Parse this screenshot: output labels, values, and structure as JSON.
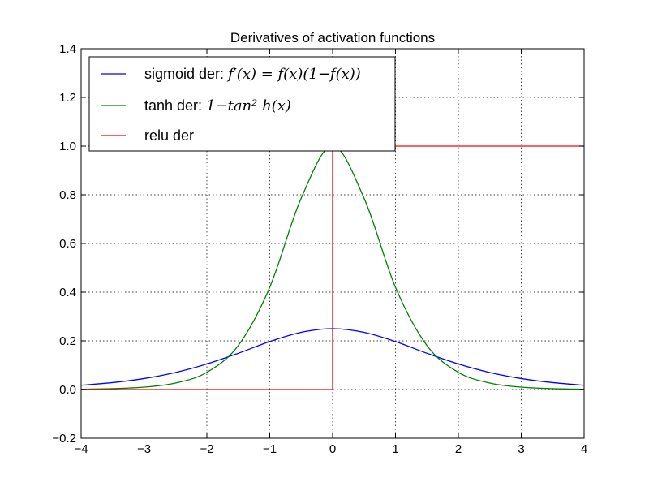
{
  "chart_data": {
    "type": "line",
    "title": "Derivatives of activation functions",
    "xlabel": "",
    "ylabel": "",
    "xlim": [
      -4,
      4
    ],
    "ylim": [
      -0.2,
      1.4
    ],
    "xticks": [
      "−4",
      "−3",
      "−2",
      "−1",
      "0",
      "1",
      "2",
      "3",
      "4"
    ],
    "yticks": [
      "−0.2",
      "0.0",
      "0.2",
      "0.4",
      "0.6",
      "0.8",
      "1.0",
      "1.2",
      "1.4"
    ],
    "grid": true,
    "legend_position": "top-left",
    "x": [
      -4,
      -3.5,
      -3,
      -2.5,
      -2,
      -1.5,
      -1,
      -0.5,
      0,
      0.5,
      1,
      1.5,
      2,
      2.5,
      3,
      3.5,
      4
    ],
    "series": [
      {
        "name": "sigmoid der:",
        "name_math": "f′(x) = f(x)(1−f(x))",
        "color": "#0000ff",
        "values": [
          0.0177,
          0.0285,
          0.0452,
          0.0701,
          0.105,
          0.149,
          0.197,
          0.235,
          0.25,
          0.235,
          0.197,
          0.149,
          0.105,
          0.0701,
          0.0452,
          0.0285,
          0.0177
        ]
      },
      {
        "name": "tanh der:",
        "name_math": "1−tan² h(x)",
        "color": "#008000",
        "values": [
          0.0013,
          0.0036,
          0.0099,
          0.0266,
          0.0707,
          0.181,
          0.42,
          0.786,
          1.0,
          0.786,
          0.42,
          0.181,
          0.0707,
          0.0266,
          0.0099,
          0.0036,
          0.0013
        ]
      },
      {
        "name": "relu der",
        "color": "#ff0000",
        "step": true,
        "x": [
          -4,
          0,
          0,
          4
        ],
        "values": [
          0,
          0,
          1,
          1
        ]
      }
    ]
  }
}
